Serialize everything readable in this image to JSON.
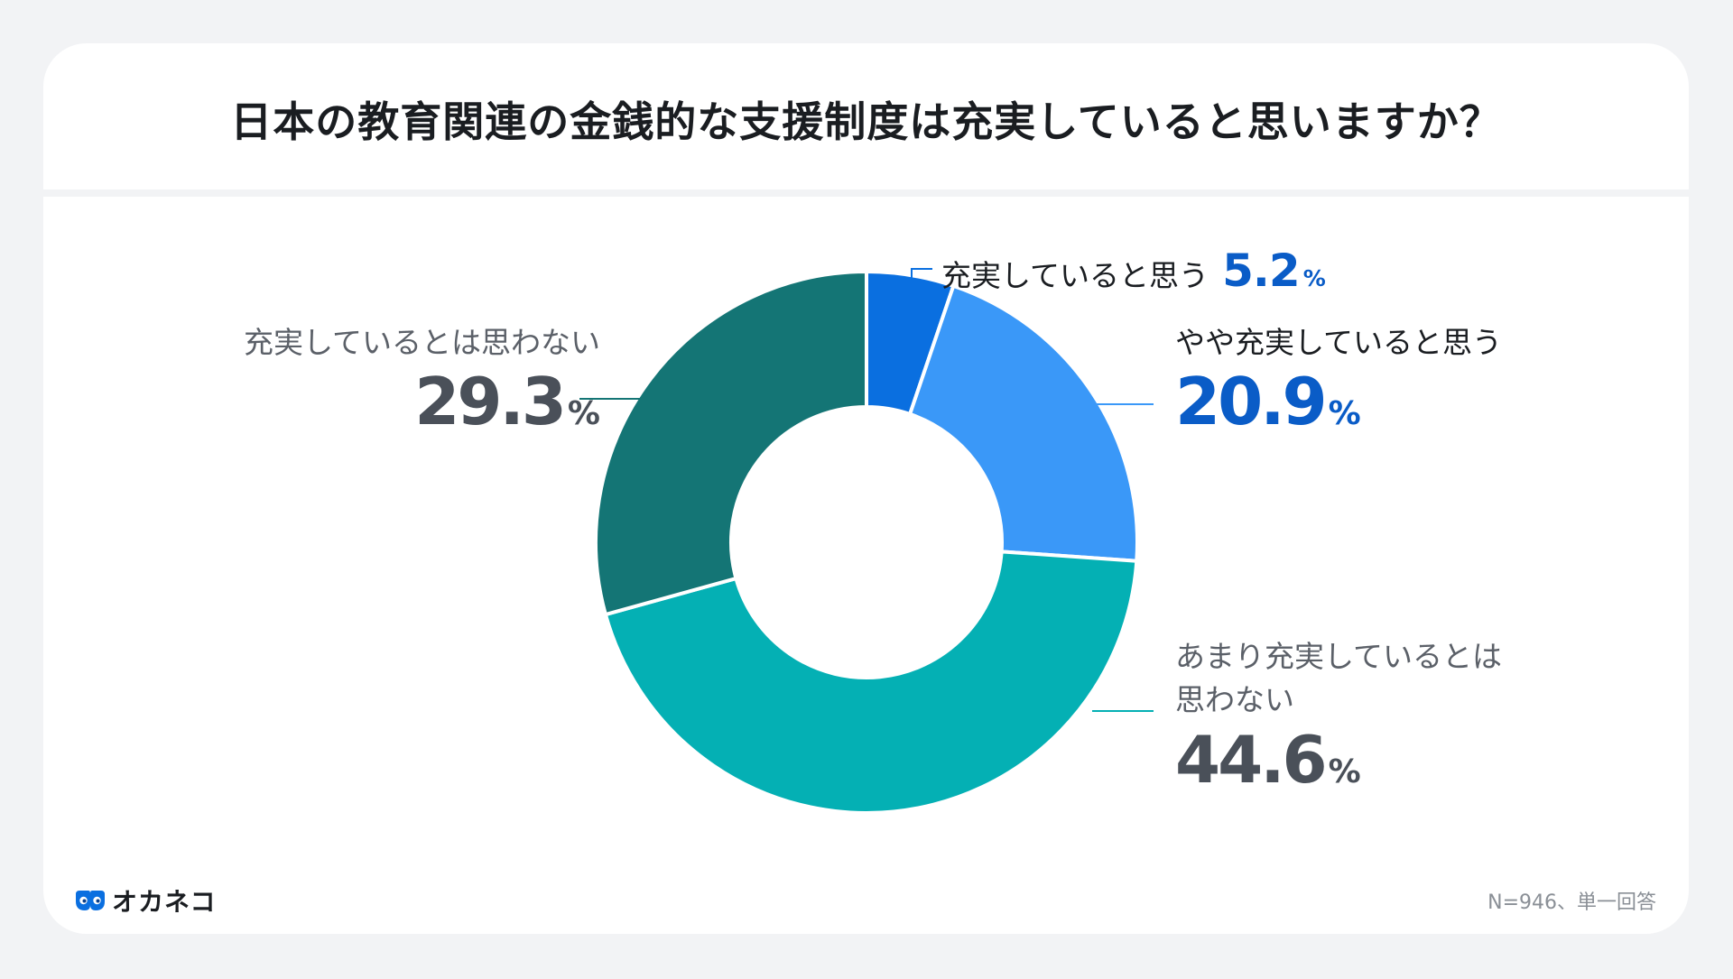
{
  "title": "日本の教育関連の金銭的な支援制度は充実していると思いますか？",
  "footnote": "N=946、単一回答",
  "logo": {
    "text": "オカネコ"
  },
  "colors": {
    "s1": "#0a6fe0",
    "s2": "#3a98f8",
    "s3": "#04b0b4",
    "s4": "#147575"
  },
  "chart_data": {
    "type": "pie",
    "donut": true,
    "unit": "%",
    "categories": [
      "充実していると思う",
      "やや充実していると思う",
      "あまり充実しているとは思わない",
      "充実しているとは思わない"
    ],
    "values": [
      5.2,
      20.9,
      44.6,
      29.3
    ],
    "labels": {
      "s1": {
        "text": "充実していると思う",
        "value": "5.2"
      },
      "s2": {
        "text": "やや充実していると思う",
        "value": "20.9"
      },
      "s3": {
        "line1": "あまり充実しているとは",
        "line2": "思わない",
        "value": "44.6"
      },
      "s4": {
        "text": "充実しているとは思わない",
        "value": "29.3"
      }
    },
    "percent_sign": "%"
  }
}
